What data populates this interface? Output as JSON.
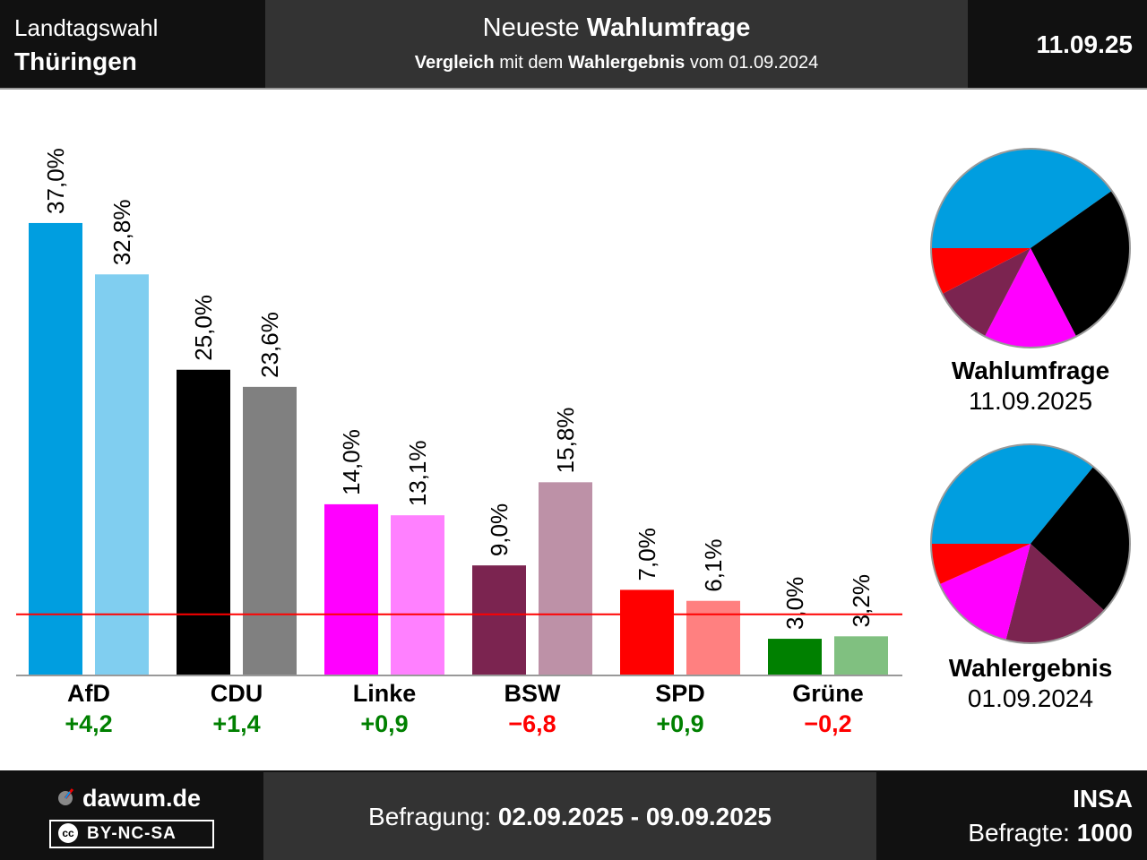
{
  "header": {
    "left_line1": "Landtagswahl",
    "left_line2": "Thüringen",
    "mid_line1_normal": "Neueste ",
    "mid_line1_bold": "Wahlumfrage",
    "mid_line2_bold1": "Vergleich",
    "mid_line2_text1": " mit dem ",
    "mid_line2_bold2": "Wahlergebnis",
    "mid_line2_text2": " vom 01.09.2024",
    "date": "11.09.25"
  },
  "chart_data": {
    "type": "bar",
    "categories": [
      "AfD",
      "CDU",
      "Linke",
      "BSW",
      "SPD",
      "Grüne"
    ],
    "series": [
      {
        "name": "Wahlumfrage",
        "values": [
          37.0,
          25.0,
          14.0,
          9.0,
          7.0,
          3.0
        ],
        "labels": [
          "37,0%",
          "25,0%",
          "14,0%",
          "9,0%",
          "7,0%",
          "3,0%"
        ],
        "colors": [
          "#009EE0",
          "#000000",
          "#FF00FF",
          "#7B2450",
          "#FF0000",
          "#008000"
        ]
      },
      {
        "name": "Wahlergebnis",
        "values": [
          32.8,
          23.6,
          13.1,
          15.8,
          6.1,
          3.2
        ],
        "labels": [
          "32,8%",
          "23,6%",
          "13,1%",
          "15,8%",
          "6,1%",
          "3,2%"
        ],
        "colors": [
          "#80CEF0",
          "#808080",
          "#FF80FF",
          "#BD91A7",
          "#FF8080",
          "#80C080"
        ]
      }
    ],
    "changes": [
      "+4,2",
      "+1,4",
      "+0,9",
      "−6,8",
      "+0,9",
      "−0,2"
    ],
    "change_colors": [
      "#008000",
      "#008000",
      "#008000",
      "#FF0000",
      "#008000",
      "#FF0000"
    ],
    "threshold": 5,
    "threshold_color": "#FF0000",
    "ylim": [
      0,
      37
    ],
    "grid": false,
    "pies": [
      {
        "title": "Wahlumfrage",
        "date": "11.09.2025",
        "order": [
          "AfD",
          "CDU",
          "Linke",
          "BSW",
          "SPD"
        ],
        "values": [
          37.0,
          25.0,
          14.0,
          9.0,
          7.0
        ],
        "colors": [
          "#009EE0",
          "#000000",
          "#FF00FF",
          "#7B2450",
          "#FF0000"
        ]
      },
      {
        "title": "Wahlergebnis",
        "date": "01.09.2024",
        "order": [
          "AfD",
          "CDU",
          "BSW",
          "Linke",
          "SPD"
        ],
        "values": [
          32.8,
          23.6,
          15.8,
          13.1,
          6.1
        ],
        "colors": [
          "#009EE0",
          "#000000",
          "#7B2450",
          "#FF00FF",
          "#FF0000"
        ]
      }
    ]
  },
  "footer": {
    "brand": "dawum.de",
    "license": "BY-NC-SA",
    "license_icon": "cc",
    "survey_label": "Befragung: ",
    "survey_period": "02.09.2025 - 09.09.2025",
    "institute": "INSA",
    "respondents_label": "Befragte: ",
    "respondents": "1000"
  }
}
